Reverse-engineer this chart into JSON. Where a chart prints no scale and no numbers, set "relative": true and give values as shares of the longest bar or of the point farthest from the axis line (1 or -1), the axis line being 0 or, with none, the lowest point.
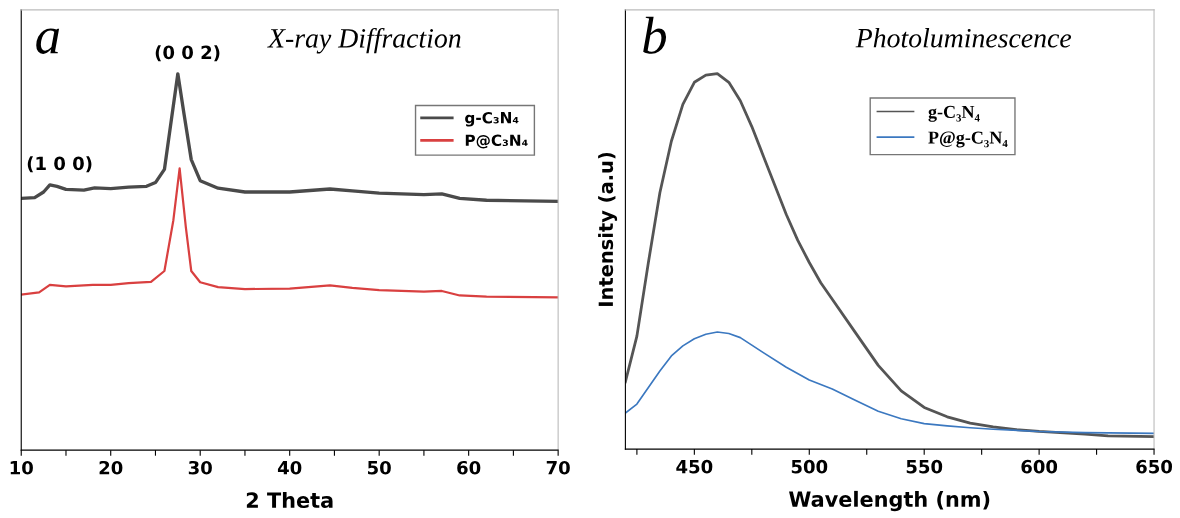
{
  "chart_data": [
    {
      "type": "line",
      "title": "X-ray Diffraction",
      "xlabel": "2 Theta",
      "relative": true,
      "tick_labels": "x",
      "grid": false,
      "legend": "top right",
      "line_style": "solid",
      "xlim": [
        10,
        70
      ],
      "xticks": [
        10,
        {
          "value": 15,
          "label": null
        },
        20,
        {
          "value": 25,
          "label": null
        },
        30,
        {
          "value": 35,
          "label": null
        },
        40,
        {
          "value": 45,
          "label": null
        },
        50,
        {
          "value": 55,
          "label": null
        },
        60,
        {
          "value": 65,
          "label": null
        },
        70
      ],
      "annotations": [
        "a",
        {
          "text": "(1 0 0)",
          "x": 13.2,
          "y": 0.705
        },
        {
          "text": "(0 0 2)",
          "x": 27.5,
          "y": 1.0
        }
      ],
      "series": [
        {
          "name": "g-C₃N₄",
          "color": "#4a4a4a",
          "x": [
            10,
            11.5,
            12.5,
            13.2,
            14,
            15,
            17,
            18.2,
            20,
            22,
            24,
            25,
            26,
            26.8,
            27.5,
            28.2,
            29,
            30,
            32,
            35,
            40,
            44.5,
            47,
            50,
            55,
            57,
            59,
            62,
            70
          ],
          "values": [
            0.669,
            0.671,
            0.686,
            0.705,
            0.701,
            0.693,
            0.691,
            0.697,
            0.695,
            0.699,
            0.701,
            0.711,
            0.746,
            0.882,
            1.0,
            0.892,
            0.772,
            0.716,
            0.696,
            0.686,
            0.686,
            0.694,
            0.689,
            0.683,
            0.679,
            0.681,
            0.669,
            0.664,
            0.661
          ]
        },
        {
          "name": "P@C₃N₄",
          "color": "#d94040",
          "x": [
            10,
            12,
            13.2,
            15,
            18,
            20,
            22,
            24.5,
            26,
            27,
            27.7,
            28.4,
            29,
            30,
            32,
            35,
            40,
            44.5,
            47,
            50,
            55,
            57,
            59,
            62,
            70
          ],
          "values": [
            0.413,
            0.419,
            0.439,
            0.435,
            0.439,
            0.439,
            0.444,
            0.447,
            0.476,
            0.611,
            0.749,
            0.591,
            0.476,
            0.446,
            0.433,
            0.428,
            0.429,
            0.438,
            0.431,
            0.425,
            0.421,
            0.423,
            0.411,
            0.408,
            0.406
          ]
        }
      ]
    },
    {
      "type": "line",
      "title": "Photoluminescence",
      "xlabel": "Wavelength (nm)",
      "ylabel": "Intensity (a.u)",
      "relative": true,
      "tick_labels": "x",
      "grid": false,
      "legend": "top",
      "line_style": "solid",
      "xlim": [
        420,
        650
      ],
      "xticks": [
        {
          "value": 425,
          "label": null
        },
        450,
        {
          "value": 475,
          "label": null
        },
        500,
        {
          "value": 525,
          "label": null
        },
        550,
        {
          "value": 575,
          "label": null
        },
        600,
        {
          "value": 625,
          "label": null
        },
        650
      ],
      "annotations": [
        "b"
      ],
      "series": [
        {
          "name": "g-C₃N₄",
          "color": "#555555",
          "x": [
            420,
            425,
            430,
            435,
            440,
            445,
            450,
            455,
            460,
            465,
            470,
            475,
            480,
            485,
            490,
            495,
            500,
            505,
            510,
            520,
            530,
            540,
            550,
            560,
            570,
            580,
            590,
            600,
            620,
            630,
            650
          ],
          "values": [
            0.179,
            0.301,
            0.497,
            0.683,
            0.82,
            0.918,
            0.977,
            0.996,
            1.0,
            0.977,
            0.928,
            0.859,
            0.781,
            0.703,
            0.625,
            0.556,
            0.497,
            0.443,
            0.399,
            0.311,
            0.223,
            0.155,
            0.111,
            0.086,
            0.069,
            0.059,
            0.052,
            0.047,
            0.04,
            0.035,
            0.033
          ]
        },
        {
          "name": "P@g-C₃N₄",
          "color": "#3b78c0",
          "x": [
            420,
            425,
            430,
            435,
            440,
            445,
            450,
            455,
            460,
            465,
            470,
            475,
            480,
            490,
            500,
            510,
            520,
            530,
            540,
            550,
            560,
            570,
            580,
            600,
            620,
            650
          ],
          "values": [
            0.096,
            0.12,
            0.164,
            0.208,
            0.248,
            0.275,
            0.294,
            0.306,
            0.312,
            0.308,
            0.297,
            0.277,
            0.257,
            0.218,
            0.184,
            0.16,
            0.13,
            0.101,
            0.081,
            0.068,
            0.062,
            0.057,
            0.053,
            0.047,
            0.044,
            0.042
          ]
        }
      ]
    }
  ]
}
